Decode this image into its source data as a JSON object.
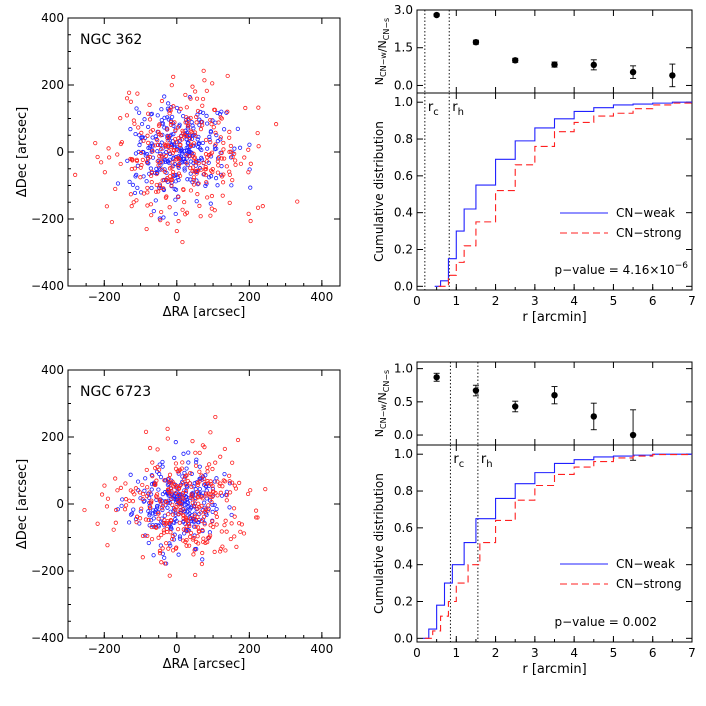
{
  "chart_data": [
    {
      "type": "scatter",
      "annotation": "NGC 362",
      "xlabel": "ΔRA [arcsec]",
      "ylabel": "ΔDec [arcsec]",
      "xlim": [
        -300,
        450
      ],
      "ylim": [
        -400,
        400
      ],
      "xticks": [
        -200,
        0,
        200,
        400
      ],
      "yticks": [
        -400,
        -200,
        0,
        200,
        400
      ],
      "series": [
        {
          "color": "#2020ff",
          "marker": "open-circle",
          "n_points": 300,
          "center": [
            0,
            0
          ],
          "spread": [
            65,
            70
          ]
        },
        {
          "color": "#ff2020",
          "marker": "open-circle",
          "n_points": 300,
          "center": [
            20,
            -10
          ],
          "spread": [
            100,
            100
          ]
        }
      ]
    },
    {
      "type": "scatter",
      "ylabel": "N_CN-w/N_CN-s",
      "xlim": [
        0,
        7
      ],
      "ylim": [
        -0.3,
        3.0
      ],
      "yticks": [
        0.0,
        1.5,
        3.0
      ],
      "ytick_labels": [
        "0.0",
        "1.5",
        "3.0"
      ],
      "x": [
        0.5,
        1.5,
        2.5,
        3.5,
        4.5,
        5.5,
        6.5
      ],
      "y": [
        2.8,
        1.72,
        1.0,
        0.83,
        0.82,
        0.53,
        0.4
      ],
      "yerr": [
        0.05,
        0.08,
        0.08,
        0.1,
        0.2,
        0.25,
        0.45
      ],
      "vlines": [
        0.2,
        0.82
      ]
    },
    {
      "type": "line",
      "xlabel": "r [arcmin]",
      "ylabel": "Cumulative distribution",
      "xlim": [
        0,
        7
      ],
      "ylim": [
        -0.02,
        1.05
      ],
      "xticks": [
        0,
        1,
        2,
        3,
        4,
        5,
        6,
        7
      ],
      "yticks": [
        0.0,
        0.2,
        0.4,
        0.6,
        0.8,
        1.0
      ],
      "ytick_labels": [
        "0.0",
        "0.2",
        "0.4",
        "0.6",
        "0.8",
        "1.0"
      ],
      "vlines": [
        {
          "x": 0.2,
          "label_main": "r",
          "label_sub": "c"
        },
        {
          "x": 0.82,
          "label_main": "r",
          "label_sub": "h"
        }
      ],
      "series": [
        {
          "name": "CN−weak",
          "color": "#2020ff",
          "dash": "solid",
          "x": [
            0.45,
            0.6,
            0.8,
            1.0,
            1.2,
            1.5,
            2.0,
            2.5,
            3.0,
            3.5,
            4.0,
            4.5,
            5.0,
            5.5,
            6.0,
            6.5,
            7.0
          ],
          "y": [
            0.0,
            0.03,
            0.15,
            0.3,
            0.42,
            0.55,
            0.69,
            0.79,
            0.86,
            0.91,
            0.95,
            0.97,
            0.985,
            0.99,
            0.995,
            1.0,
            1.0
          ]
        },
        {
          "name": "CN−strong",
          "color": "#ff2020",
          "dash": "dashed",
          "x": [
            0.55,
            0.8,
            1.0,
            1.2,
            1.5,
            2.0,
            2.5,
            3.0,
            3.5,
            4.0,
            4.5,
            5.0,
            5.5,
            6.0,
            6.5,
            7.0
          ],
          "y": [
            0.0,
            0.06,
            0.13,
            0.22,
            0.35,
            0.52,
            0.66,
            0.76,
            0.84,
            0.89,
            0.925,
            0.94,
            0.965,
            0.985,
            0.995,
            1.0
          ]
        }
      ],
      "annotation": {
        "prefix": "p−value =",
        "value": "4.16×10",
        "exponent": "−6"
      }
    },
    {
      "type": "scatter",
      "annotation": "NGC 6723",
      "xlabel": "ΔRA [arcsec]",
      "ylabel": "ΔDec [arcsec]",
      "xlim": [
        -300,
        450
      ],
      "ylim": [
        -400,
        400
      ],
      "xticks": [
        -200,
        0,
        200,
        400
      ],
      "yticks": [
        -400,
        -200,
        0,
        200,
        400
      ],
      "series": [
        {
          "color": "#2020ff",
          "marker": "open-circle",
          "n_points": 280,
          "center": [
            0,
            0
          ],
          "spread": [
            60,
            60
          ]
        },
        {
          "color": "#ff2020",
          "marker": "open-circle",
          "n_points": 320,
          "center": [
            10,
            -10
          ],
          "spread": [
            90,
            85
          ]
        }
      ]
    },
    {
      "type": "scatter",
      "ylabel": "N_CN-w/N_CN-s",
      "xlim": [
        0,
        7
      ],
      "ylim": [
        -0.15,
        1.1
      ],
      "yticks": [
        0.0,
        0.5,
        1.0
      ],
      "ytick_labels": [
        "0.0",
        "0.5",
        "1.0"
      ],
      "x": [
        0.5,
        1.5,
        2.5,
        3.5,
        4.5,
        5.5
      ],
      "y": [
        0.87,
        0.67,
        0.43,
        0.6,
        0.28,
        0.0
      ],
      "yerr": [
        0.06,
        0.08,
        0.08,
        0.13,
        0.2,
        0.38
      ],
      "vlines": [
        0.85,
        1.55
      ]
    },
    {
      "type": "line",
      "xlabel": "r [arcmin]",
      "ylabel": "Cumulative distribution",
      "xlim": [
        0,
        7
      ],
      "ylim": [
        -0.02,
        1.05
      ],
      "xticks": [
        0,
        1,
        2,
        3,
        4,
        5,
        6,
        7
      ],
      "yticks": [
        0.0,
        0.2,
        0.4,
        0.6,
        0.8,
        1.0
      ],
      "ytick_labels": [
        "0.0",
        "0.2",
        "0.4",
        "0.6",
        "0.8",
        "1.0"
      ],
      "vlines": [
        {
          "x": 0.85,
          "label_main": "r",
          "label_sub": "c"
        },
        {
          "x": 1.55,
          "label_main": "r",
          "label_sub": "h"
        }
      ],
      "series": [
        {
          "name": "CN−weak",
          "color": "#2020ff",
          "dash": "solid",
          "x": [
            0.15,
            0.3,
            0.5,
            0.7,
            0.9,
            1.2,
            1.5,
            2.0,
            2.5,
            3.0,
            3.5,
            4.0,
            4.5,
            5.0,
            5.5,
            6.0,
            7.0
          ],
          "y": [
            0.0,
            0.05,
            0.18,
            0.3,
            0.4,
            0.52,
            0.65,
            0.76,
            0.84,
            0.9,
            0.95,
            0.97,
            0.985,
            0.99,
            0.995,
            1.0,
            1.0
          ]
        },
        {
          "name": "CN−strong",
          "color": "#ff2020",
          "dash": "dashed",
          "x": [
            0.2,
            0.4,
            0.6,
            0.8,
            1.0,
            1.3,
            1.6,
            2.0,
            2.5,
            3.0,
            3.5,
            4.0,
            4.5,
            5.0,
            5.5,
            6.0,
            7.0
          ],
          "y": [
            0.0,
            0.04,
            0.12,
            0.2,
            0.3,
            0.4,
            0.52,
            0.64,
            0.75,
            0.83,
            0.89,
            0.93,
            0.96,
            0.98,
            0.99,
            0.998,
            1.0
          ]
        }
      ],
      "annotation": {
        "prefix": "p−value =",
        "value": "0.002",
        "exponent": ""
      }
    }
  ]
}
